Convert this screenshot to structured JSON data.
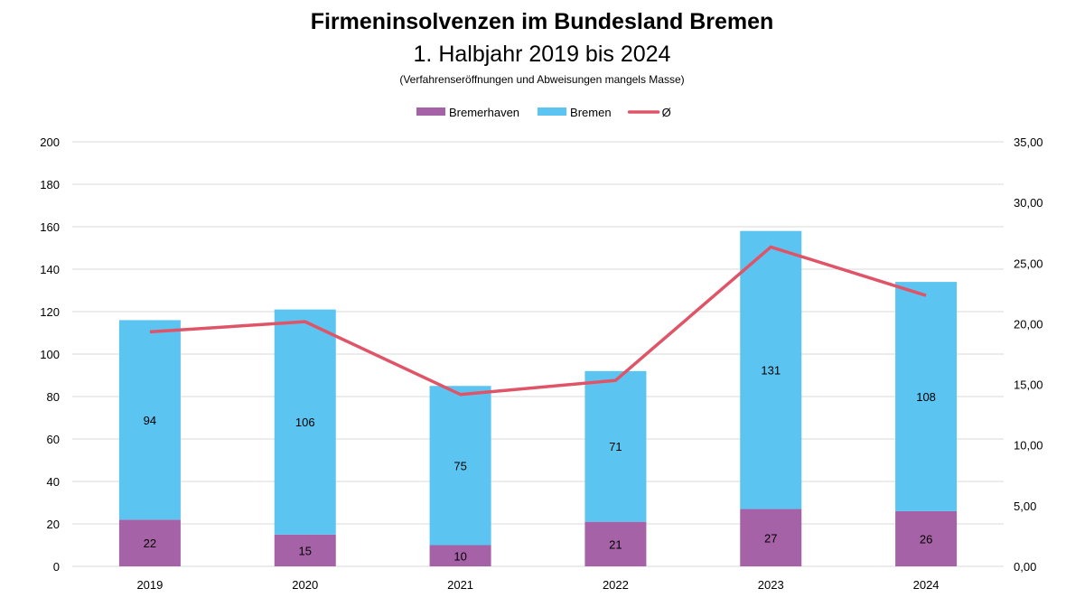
{
  "chart_data": {
    "type": "bar",
    "title": "Firmeninsolvenzen im Bundesland Bremen",
    "subtitle": "1. Halbjahr 2019 bis 2024",
    "note": "(Verfahrenseröffnungen und Abweisungen mangels Masse)",
    "categories": [
      "2019",
      "2020",
      "2021",
      "2022",
      "2023",
      "2024"
    ],
    "stacked": true,
    "series": [
      {
        "name": "Bremerhaven",
        "type": "bar",
        "color": "#A662A6",
        "values": [
          22,
          15,
          10,
          21,
          27,
          26
        ]
      },
      {
        "name": "Bremen",
        "type": "bar",
        "color": "#5BC4F1",
        "values": [
          94,
          106,
          75,
          71,
          131,
          108
        ]
      },
      {
        "name": "Ø",
        "type": "line",
        "axis": "right",
        "color": "#E05468",
        "values": [
          19.33,
          20.17,
          14.17,
          15.33,
          26.33,
          22.33
        ]
      }
    ],
    "y_left": {
      "range": [
        0,
        200
      ],
      "ticks": [
        "0",
        "20",
        "40",
        "60",
        "80",
        "100",
        "120",
        "140",
        "160",
        "180",
        "200"
      ]
    },
    "y_right": {
      "range": [
        0,
        35
      ],
      "ticks": [
        "0,00",
        "5,00",
        "10,00",
        "15,00",
        "20,00",
        "25,00",
        "30,00",
        "35,00"
      ]
    },
    "grid": true,
    "legend": "top"
  }
}
